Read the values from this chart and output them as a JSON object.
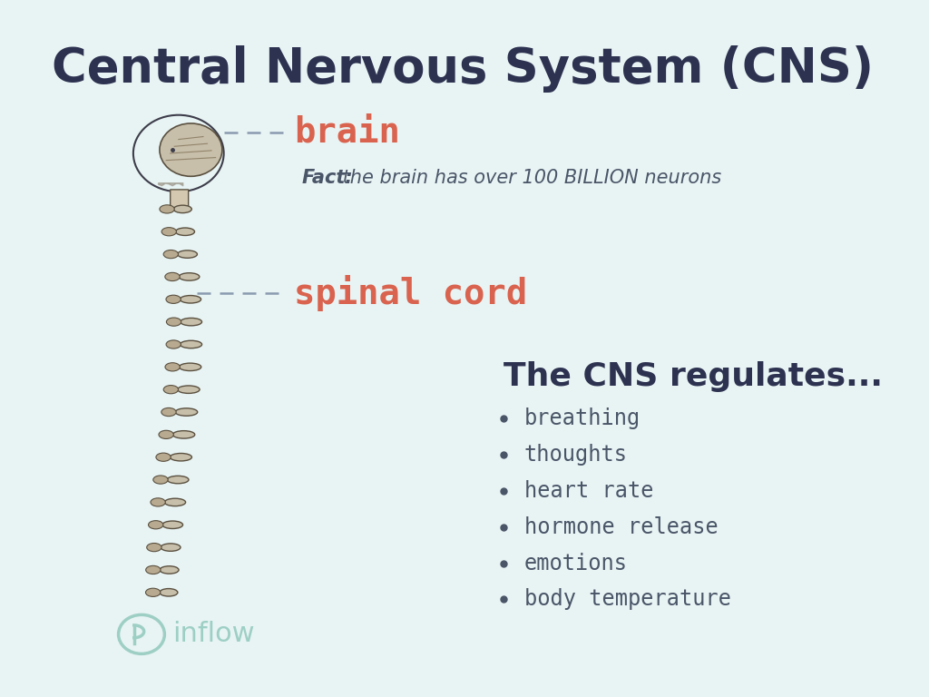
{
  "title": "Central Nervous System (CNS)",
  "title_color": "#2d3250",
  "title_fontsize": 38,
  "background_color": "#e8f4f4",
  "brain_label": "brain",
  "spinal_label": "spinal cord",
  "label_color": "#d9634e",
  "label_fontsize": 28,
  "fact_bold": "Fact:",
  "fact_italic": " the brain has over 100 BILLION neurons",
  "fact_color": "#4a5568",
  "fact_fontsize": 15,
  "regulates_title": "The CNS regulates...",
  "regulates_color": "#2d3250",
  "regulates_fontsize": 26,
  "bullet_items": [
    "breathing",
    "thoughts",
    "heart rate",
    "hormone release",
    "emotions",
    "body temperature"
  ],
  "bullet_color": "#4a5568",
  "bullet_fontsize": 17,
  "inflow_color": "#9ecfc5",
  "dashes_color": "#8a9ab0"
}
